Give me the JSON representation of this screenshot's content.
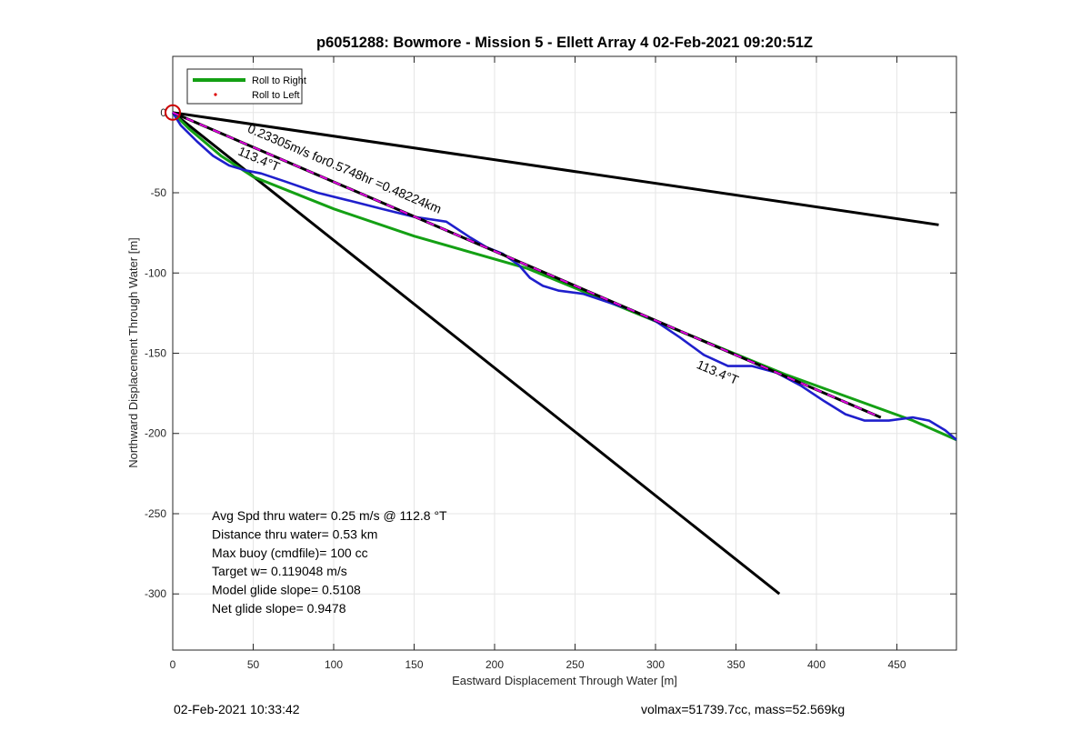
{
  "chart_data": {
    "type": "line",
    "title": "p6051288: Bowmore - Mission 5 - Ellett Array 4 02-Feb-2021 09:20:51Z",
    "xlabel": "Eastward Displacement Through Water [m]",
    "ylabel": "Northward Displacement Through Water [m]",
    "xlim": [
      0,
      487
    ],
    "ylim": [
      -335,
      35
    ],
    "xticks": [
      0,
      50,
      100,
      150,
      200,
      250,
      300,
      350,
      400,
      450
    ],
    "yticks": [
      0,
      -50,
      -100,
      -150,
      -200,
      -250,
      -300
    ],
    "xtick_labels": [
      "0",
      "50",
      "100",
      "150",
      "200",
      "250",
      "300",
      "350",
      "400",
      "450"
    ],
    "ytick_labels": [
      "0",
      "-50",
      "-100",
      "-150",
      "-200",
      "-250",
      "-300"
    ],
    "grid": true,
    "legend_position": "top-left",
    "legend": [
      "Roll to Right",
      "Roll to Left"
    ],
    "series": [
      {
        "name": "Roll to Right",
        "color": "#14a014",
        "x": [
          0,
          10,
          30,
          50,
          100,
          150,
          220,
          300,
          380,
          460,
          487
        ],
        "y": [
          0,
          -10,
          -27,
          -40,
          -60,
          -77,
          -97,
          -130,
          -163,
          -192,
          -204
        ]
      },
      {
        "name": "Roll to Left",
        "color": "#dd0000",
        "x": [],
        "y": []
      }
    ],
    "track": {
      "color": "#1f1fcc",
      "x": [
        0,
        5,
        15,
        25,
        35,
        45,
        55,
        70,
        90,
        110,
        130,
        150,
        170,
        185,
        195,
        205,
        215,
        222,
        230,
        240,
        255,
        270,
        285,
        300,
        315,
        330,
        345,
        360,
        375,
        390,
        405,
        418,
        430,
        445,
        460,
        470,
        480,
        487
      ],
      "y": [
        0,
        -8,
        -18,
        -27,
        -33,
        -36,
        -38,
        -43,
        -50,
        -55,
        -60,
        -65,
        -68,
        -78,
        -84,
        -88,
        -95,
        -103,
        -108,
        -111,
        -113,
        -118,
        -123,
        -130,
        -140,
        -151,
        -158,
        -158,
        -162,
        -170,
        -180,
        -188,
        -192,
        -192,
        -190,
        -192,
        -198,
        -204
      ]
    },
    "fit_line": {
      "color_dark": "#000000",
      "color_dash": "#e000e0",
      "x": [
        0,
        440
      ],
      "y": [
        0,
        -190
      ]
    },
    "black_lines": [
      {
        "x": [
          0,
          476
        ],
        "y": [
          0,
          -70
        ]
      },
      {
        "x": [
          0,
          377
        ],
        "y": [
          0,
          -300
        ]
      }
    ],
    "start_marker": {
      "x": 0,
      "y": 0,
      "color": "#cc0000"
    },
    "annotations": [
      {
        "text": "0.23305m/s for0.5748hr =0.48224km",
        "x": 46,
        "y": -12,
        "angle": 23.1
      },
      {
        "text": "113.4°T",
        "x": 40,
        "y": -26,
        "angle": 23.1
      },
      {
        "text": "113.4°T",
        "x": 325,
        "y": -159,
        "angle": 23.1
      }
    ],
    "stats_lines": [
      "Avg Spd thru water=  0.25 m/s @ 112.8 °T",
      "Distance thru water=  0.53 km",
      "Max buoy (cmdfile)= 100 cc",
      "Target w= 0.119048 m/s",
      "Model glide slope= 0.5108",
      "Net glide slope= 0.9478"
    ]
  },
  "footer": {
    "timestamp": "02-Feb-2021 10:33:42",
    "info": "volmax=51739.7cc, mass=52.569kg"
  }
}
